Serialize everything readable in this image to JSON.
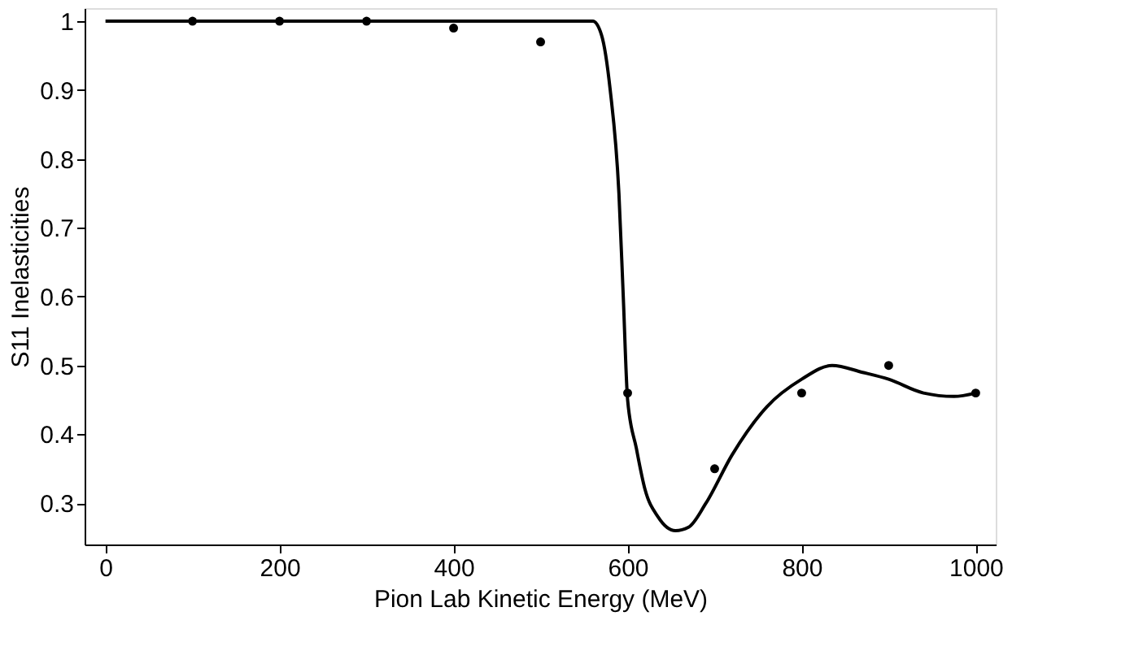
{
  "chart_data": {
    "type": "scatter",
    "xlabel": "Pion Lab Kinetic Energy (MeV)",
    "ylabel": "S11 Inelasticities",
    "xlim": [
      -24,
      1023
    ],
    "ylim": [
      0.24,
      1.019
    ],
    "xticks": [
      0,
      200,
      400,
      600,
      800,
      1000
    ],
    "yticks": [
      0.3,
      0.4,
      0.5,
      0.6,
      0.7,
      0.8,
      0.9,
      1
    ],
    "grid": false,
    "series": [
      {
        "type": "line",
        "color": "#000000",
        "line_style": "solid",
        "marker": "none",
        "x": [
          0,
          560,
          570,
          580,
          590,
          595,
          600,
          610,
          620,
          635,
          655,
          670,
          690,
          720,
          760,
          800,
          835,
          870,
          900,
          940,
          975,
          1000
        ],
        "values": [
          1,
          1,
          0.98,
          0.9,
          0.75,
          0.6,
          0.45,
          0.38,
          0.32,
          0.28,
          0.26,
          0.265,
          0.3,
          0.37,
          0.44,
          0.48,
          0.5,
          0.49,
          0.48,
          0.46,
          0.455,
          0.46
        ]
      },
      {
        "color": "#000000",
        "marker": "circle",
        "x": [
          100,
          200,
          300,
          400,
          500,
          600,
          700,
          800,
          900,
          1000
        ],
        "values": [
          1,
          1,
          1,
          0.99,
          0.97,
          0.46,
          0.35,
          0.46,
          0.5,
          0.46
        ]
      }
    ]
  }
}
